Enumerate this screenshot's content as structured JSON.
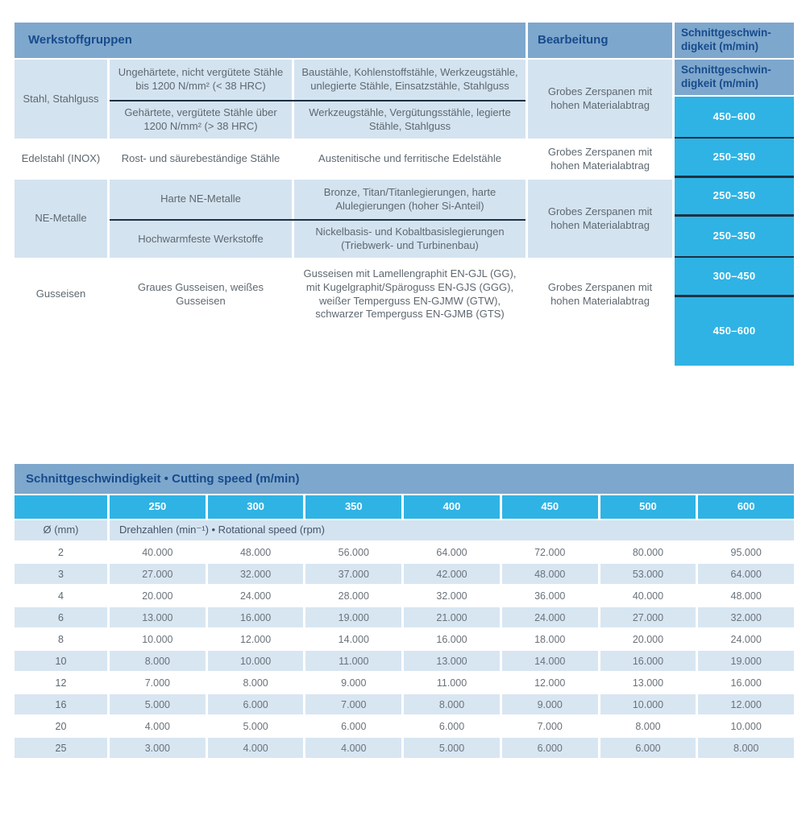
{
  "colors": {
    "header_blue": "#7ea7cd",
    "navy_text": "#174b8c",
    "light_blue": "#d4e3f0",
    "cyan": "#2fb3e4",
    "body_gray": "#5e6870",
    "divider_dark": "#1d3042"
  },
  "table1": {
    "headers": {
      "materials": "Werkstoffgruppen",
      "machining": "Bearbeitung",
      "speed": "Schnittgeschwin-digkeit (m/min)"
    },
    "sections": [
      {
        "group": "Stahl, Stahlguss",
        "machining": "Grobes Zerspanen mit hohen Materialabtrag",
        "rows": [
          {
            "sub": "Ungehärtete, nicht vergütete Stähle bis 1200 N/mm² (< 38 HRC)",
            "desc": "Baustähle, Kohlenstoffstähle, Werkzeugstähle, unlegierte Stähle, Einsatzstähle, Stahlguss",
            "speed": "450–600"
          },
          {
            "sub": "Gehärtete, vergütete Stähle über 1200 N/mm² (> 38 HRC)",
            "desc": "Werkzeugstähle, Vergütungsstähle, legierte Stähle, Stahlguss",
            "speed": "250–350"
          }
        ]
      },
      {
        "group": "Edelstahl (INOX)",
        "machining": "Grobes Zerspanen mit hohen Materialabtrag",
        "rows": [
          {
            "sub": "Rost- und säurebeständige Stähle",
            "desc": "Austenitische und ferritische Edelstähle",
            "speed": "250–350"
          }
        ]
      },
      {
        "group": "NE-Metalle",
        "machining": "Grobes Zerspanen mit hohen Materialabtrag",
        "rows": [
          {
            "sub": "Harte NE-Metalle",
            "desc": "Bronze, Titan/Titanlegierungen, harte Alulegierungen (hoher Si-Anteil)",
            "speed": "250–350"
          },
          {
            "sub": "Hochwarmfeste Werkstoffe",
            "desc": "Nickelbasis- und Kobaltbasislegierungen (Triebwerk- und Turbinenbau)",
            "speed": "300–450"
          }
        ]
      },
      {
        "group": "Gusseisen",
        "machining": "Grobes Zerspanen mit hohen Materialabtrag",
        "rows": [
          {
            "sub": "Graues Gusseisen, weißes Gusseisen",
            "desc": "Gusseisen mit Lamellengraphit EN-GJL (GG), mit Kugelgraphit/Späroguss EN-GJS (GGG), weißer Temperguss EN-GJMW (GTW), schwarzer Temperguss EN-GJMB (GTS)",
            "speed": "450–600"
          }
        ]
      }
    ]
  },
  "table2": {
    "title": "Schnittgeschwindigkeit • Cutting speed (m/min)",
    "speed_columns": [
      "250",
      "300",
      "350",
      "400",
      "450",
      "500",
      "600"
    ],
    "diameter_label": "Ø (mm)",
    "rpm_label": "Drehzahlen (min⁻¹) • Rotational speed (rpm)",
    "rows": [
      {
        "diameter": "2",
        "values": [
          "40.000",
          "48.000",
          "56.000",
          "64.000",
          "72.000",
          "80.000",
          "95.000"
        ]
      },
      {
        "diameter": "3",
        "values": [
          "27.000",
          "32.000",
          "37.000",
          "42.000",
          "48.000",
          "53.000",
          "64.000"
        ]
      },
      {
        "diameter": "4",
        "values": [
          "20.000",
          "24.000",
          "28.000",
          "32.000",
          "36.000",
          "40.000",
          "48.000"
        ]
      },
      {
        "diameter": "6",
        "values": [
          "13.000",
          "16.000",
          "19.000",
          "21.000",
          "24.000",
          "27.000",
          "32.000"
        ]
      },
      {
        "diameter": "8",
        "values": [
          "10.000",
          "12.000",
          "14.000",
          "16.000",
          "18.000",
          "20.000",
          "24.000"
        ]
      },
      {
        "diameter": "10",
        "values": [
          "8.000",
          "10.000",
          "11.000",
          "13.000",
          "14.000",
          "16.000",
          "19.000"
        ]
      },
      {
        "diameter": "12",
        "values": [
          "7.000",
          "8.000",
          "9.000",
          "11.000",
          "12.000",
          "13.000",
          "16.000"
        ]
      },
      {
        "diameter": "16",
        "values": [
          "5.000",
          "6.000",
          "7.000",
          "8.000",
          "9.000",
          "10.000",
          "12.000"
        ]
      },
      {
        "diameter": "20",
        "values": [
          "4.000",
          "5.000",
          "6.000",
          "6.000",
          "7.000",
          "8.000",
          "10.000"
        ]
      },
      {
        "diameter": "25",
        "values": [
          "3.000",
          "4.000",
          "4.000",
          "5.000",
          "6.000",
          "6.000",
          "8.000"
        ]
      }
    ]
  }
}
